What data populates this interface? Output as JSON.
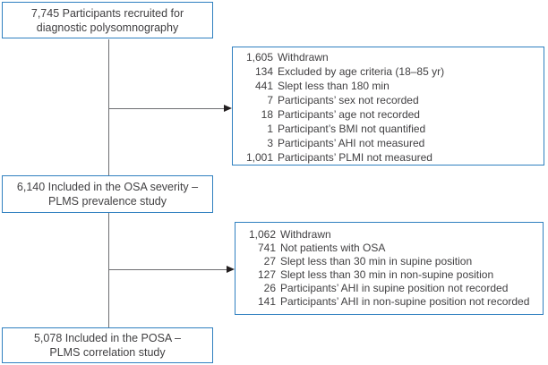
{
  "colors": {
    "box_border": "#2f80c0",
    "box_background": "#ffffff",
    "text": "#414042",
    "connector_line": "#6d6e71",
    "arrowhead": "#231f20"
  },
  "boxes": {
    "recruited": {
      "lines": [
        "7,745 Participants recruited for",
        "diagnostic polysomnography"
      ]
    },
    "withdrawn_first": {
      "rows": [
        {
          "num": "1,605",
          "text": "Withdrawn"
        },
        {
          "num": "134",
          "text": "Excluded by age criteria (18–85 yr)"
        },
        {
          "num": "441",
          "text": "Slept less than 180 min"
        },
        {
          "num": "7",
          "text": "Participants’ sex not recorded"
        },
        {
          "num": "18",
          "text": "Participants’ age not recorded"
        },
        {
          "num": "1",
          "text": "Participant’s BMI not quantified"
        },
        {
          "num": "3",
          "text": "Participants’ AHI not measured"
        },
        {
          "num": "1,001",
          "text": "Participants’ PLMI not measured"
        }
      ]
    },
    "osa_severity": {
      "lines": [
        "6,140 Included in the OSA severity –",
        "PLMS prevalence study"
      ]
    },
    "withdrawn_second": {
      "rows": [
        {
          "num": "1,062",
          "text": "Withdrawn"
        },
        {
          "num": "741",
          "text": "Not patients with OSA"
        },
        {
          "num": "27",
          "text": "Slept less than 30 min in supine position"
        },
        {
          "num": "127",
          "text": "Slept less than 30 min in non-supine position"
        },
        {
          "num": "26",
          "text": "Participants’ AHI in supine position not recorded"
        },
        {
          "num": "141",
          "text": "Participants’ AHI in non-supine position not recorded"
        }
      ]
    },
    "posa": {
      "lines": [
        "5,078 Included in the POSA –",
        "PLMS correlation study"
      ]
    }
  }
}
